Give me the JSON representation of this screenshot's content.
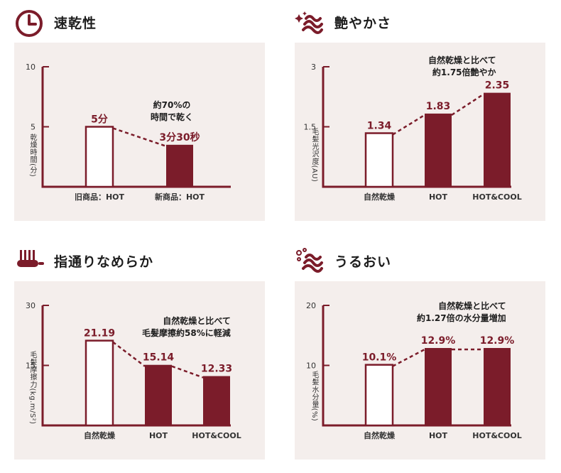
{
  "colors": {
    "accent": "#7b1c2a",
    "panel_bg": "#f4eeec",
    "outline_fill": "#ffffff"
  },
  "panels": [
    {
      "title": "速乾性",
      "icon": "clock-icon",
      "ylabel": "乾燥時間(分)",
      "note": "約70%の\n時間で乾く",
      "chart_data": {
        "type": "bar",
        "categories": [
          "旧商品：HOT",
          "新商品：HOT"
        ],
        "values": [
          5,
          3.5
        ],
        "value_labels": [
          "5分",
          "3分30秒"
        ],
        "yticks": [
          5,
          10
        ],
        "ylim": [
          0,
          10
        ],
        "styles": [
          "outline",
          "filled"
        ],
        "connector": "dashed"
      }
    },
    {
      "title": "艶やかさ",
      "icon": "shiny-hair-icon",
      "ylabel": "毛髪光沢度(AU)",
      "note": "自然乾燥と比べて\n約1.75倍艶やか",
      "chart_data": {
        "type": "bar",
        "categories": [
          "自然乾燥",
          "HOT",
          "HOT&COOL"
        ],
        "values": [
          1.34,
          1.83,
          2.35
        ],
        "value_labels": [
          "1.34",
          "1.83",
          "2.35"
        ],
        "yticks": [
          1.5,
          3
        ],
        "ylim": [
          0,
          3
        ],
        "styles": [
          "outline",
          "filled",
          "filled"
        ],
        "connector": "dashed"
      }
    },
    {
      "title": "指通りなめらか",
      "icon": "comb-icon",
      "ylabel": "毛髪摩擦力(kg.m/S²)",
      "note": "自然乾燥と比べて\n毛髪摩擦約58%に軽減",
      "chart_data": {
        "type": "bar",
        "categories": [
          "自然乾燥",
          "HOT",
          "HOT&COOL"
        ],
        "values": [
          21.19,
          15.14,
          12.33
        ],
        "value_labels": [
          "21.19",
          "15.14",
          "12.33"
        ],
        "yticks": [
          15,
          30
        ],
        "ylim": [
          0,
          30
        ],
        "styles": [
          "outline",
          "filled",
          "filled"
        ],
        "connector": "dashed"
      }
    },
    {
      "title": "うるおい",
      "icon": "moist-hair-icon",
      "ylabel": "毛髪水分量(%)",
      "note": "自然乾燥と比べて\n約1.27倍の水分量増加",
      "chart_data": {
        "type": "bar",
        "categories": [
          "自然乾燥",
          "HOT",
          "HOT&COOL"
        ],
        "values": [
          10.1,
          12.9,
          12.9
        ],
        "value_labels": [
          "10.1%",
          "12.9%",
          "12.9%"
        ],
        "yticks": [
          10,
          20
        ],
        "ylim": [
          0,
          20
        ],
        "styles": [
          "outline",
          "filled",
          "filled"
        ],
        "connector": "dashed"
      }
    }
  ]
}
